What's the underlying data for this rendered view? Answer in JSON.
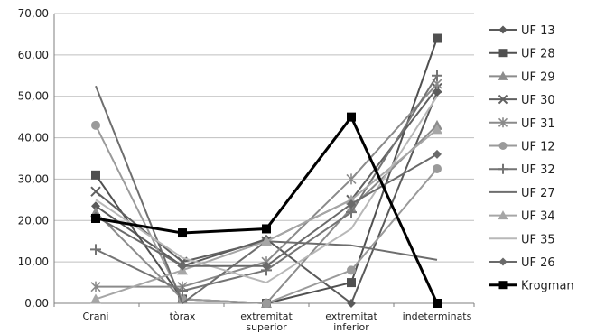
{
  "chart_data": {
    "type": "line",
    "title": "",
    "xlabel": "",
    "ylabel": "",
    "ylim": [
      0,
      70
    ],
    "y_ticks": [
      "0,00",
      "10,00",
      "20,00",
      "30,00",
      "40,00",
      "50,00",
      "60,00",
      "70,00"
    ],
    "categories": [
      [
        "Crani"
      ],
      [
        "tòrax"
      ],
      [
        "extremitat",
        "superior"
      ],
      [
        "extremitat",
        "inferior"
      ],
      [
        "indeterminats"
      ]
    ],
    "grid": "horizontal",
    "legend_position": "right",
    "series": [
      {
        "name": "UF 13",
        "values": [
          23.5,
          9,
          15.5,
          0,
          51
        ],
        "color": "#5a5a5a",
        "marker": "diamond",
        "width": 2
      },
      {
        "name": "UF 28",
        "values": [
          31,
          1,
          0,
          5,
          64
        ],
        "color": "#505050",
        "marker": "square",
        "width": 2
      },
      {
        "name": "UF 29",
        "values": [
          22,
          1,
          0,
          23,
          43
        ],
        "color": "#8c8c8c",
        "marker": "triangle",
        "width": 2
      },
      {
        "name": "UF 30",
        "values": [
          27,
          10,
          15,
          25,
          52
        ],
        "color": "#606060",
        "marker": "x",
        "width": 2
      },
      {
        "name": "UF 31",
        "values": [
          4,
          4,
          10,
          30,
          53
        ],
        "color": "#8a8a8a",
        "marker": "star",
        "width": 2
      },
      {
        "name": "UF 12",
        "values": [
          43,
          1,
          0,
          8,
          32.5
        ],
        "color": "#9a9a9a",
        "marker": "circle",
        "width": 2
      },
      {
        "name": "UF 32",
        "values": [
          13,
          3,
          8,
          22,
          55
        ],
        "color": "#747474",
        "marker": "plus",
        "width": 2
      },
      {
        "name": "UF 27",
        "values": [
          52.5,
          0,
          15,
          14,
          10.5
        ],
        "color": "#6e6e6e",
        "marker": "none",
        "width": 2
      },
      {
        "name": "UF 34",
        "values": [
          1,
          8,
          15,
          25,
          42
        ],
        "color": "#a6a6a6",
        "marker": "triangle",
        "width": 2
      },
      {
        "name": "UF 35",
        "values": [
          25,
          11,
          5,
          18,
          50
        ],
        "color": "#b8b8b8",
        "marker": "none",
        "width": 2
      },
      {
        "name": "UF 26",
        "values": [
          21,
          9,
          9,
          24,
          36
        ],
        "color": "#6a6a6a",
        "marker": "diamond",
        "width": 2
      },
      {
        "name": "Krogman",
        "values": [
          20.5,
          17,
          18,
          45,
          0
        ],
        "color": "#000000",
        "marker": "square",
        "width": 3
      }
    ]
  }
}
